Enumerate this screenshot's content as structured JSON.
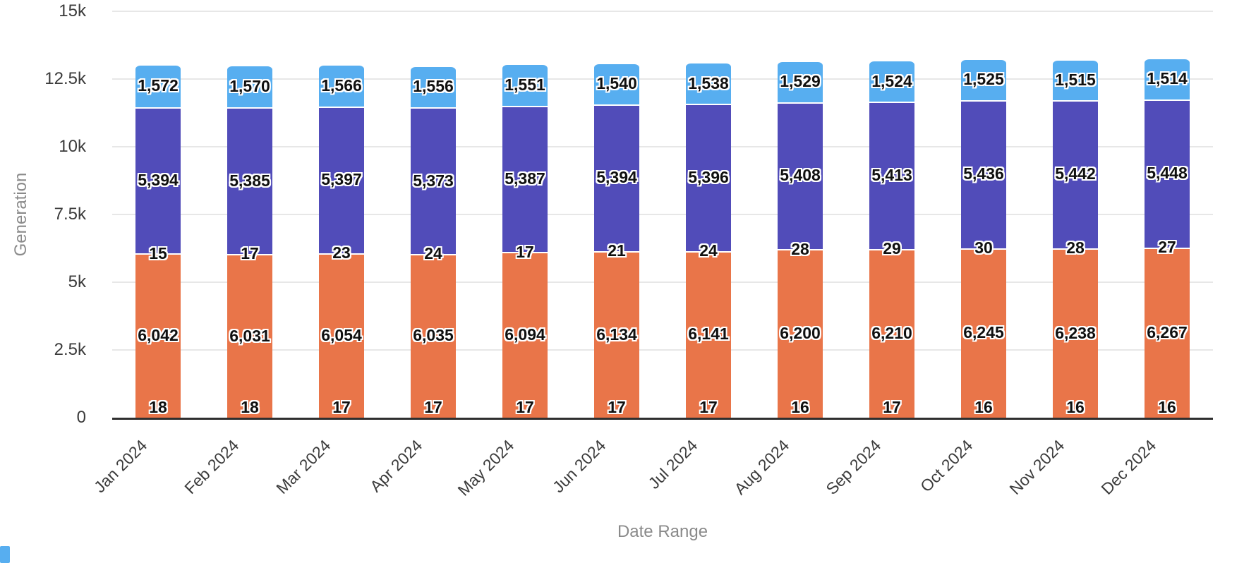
{
  "page": {
    "background": "#ffffff"
  },
  "chart_data": {
    "type": "bar",
    "stacked": true,
    "title": "",
    "xlabel": "Date Range",
    "ylabel": "Generation",
    "ylim": [
      0,
      15000
    ],
    "ytick_labels": [
      "0",
      "2.5k",
      "5k",
      "7.5k",
      "10k",
      "12.5k",
      "15k"
    ],
    "grid": true,
    "legend": "none",
    "bar_value_labels": "inside, black with white outline, thousands comma format",
    "categories": [
      "Jan 2024",
      "Feb 2024",
      "Mar 2024",
      "Apr 2024",
      "May 2024",
      "Jun 2024",
      "Jul 2024",
      "Aug 2024",
      "Sep 2024",
      "Oct 2024",
      "Nov 2024",
      "Dec 2024"
    ],
    "series": [
      {
        "name": "series-1-bottom",
        "color": "#e97549",
        "values": [
          18,
          18,
          17,
          17,
          17,
          17,
          17,
          16,
          17,
          16,
          16,
          16
        ]
      },
      {
        "name": "series-2-orange",
        "color": "#e97549",
        "values": [
          6042,
          6031,
          6054,
          6035,
          6094,
          6134,
          6141,
          6200,
          6210,
          6245,
          6238,
          6267
        ]
      },
      {
        "name": "series-3-middle",
        "color": "#514cb9",
        "values": [
          15,
          17,
          23,
          24,
          17,
          21,
          24,
          28,
          29,
          30,
          28,
          27
        ]
      },
      {
        "name": "series-4-purple",
        "color": "#514cb9",
        "values": [
          5394,
          5385,
          5397,
          5373,
          5387,
          5394,
          5396,
          5408,
          5413,
          5436,
          5442,
          5448
        ]
      },
      {
        "name": "series-5-blue",
        "color": "#57aef0",
        "values": [
          1572,
          1570,
          1566,
          1556,
          1551,
          1540,
          1538,
          1529,
          1524,
          1525,
          1515,
          1514
        ]
      }
    ]
  },
  "colors": {
    "orange": "#e97549",
    "purple": "#514cb9",
    "light_blue": "#57aef0",
    "gridline": "#e7e7e7",
    "axis_line": "#2f2f2f",
    "tick_text": "#3b3b3b",
    "axis_title_text": "#8a8a8a"
  },
  "decorations": {
    "corner_mark_color": "#57aef0"
  }
}
